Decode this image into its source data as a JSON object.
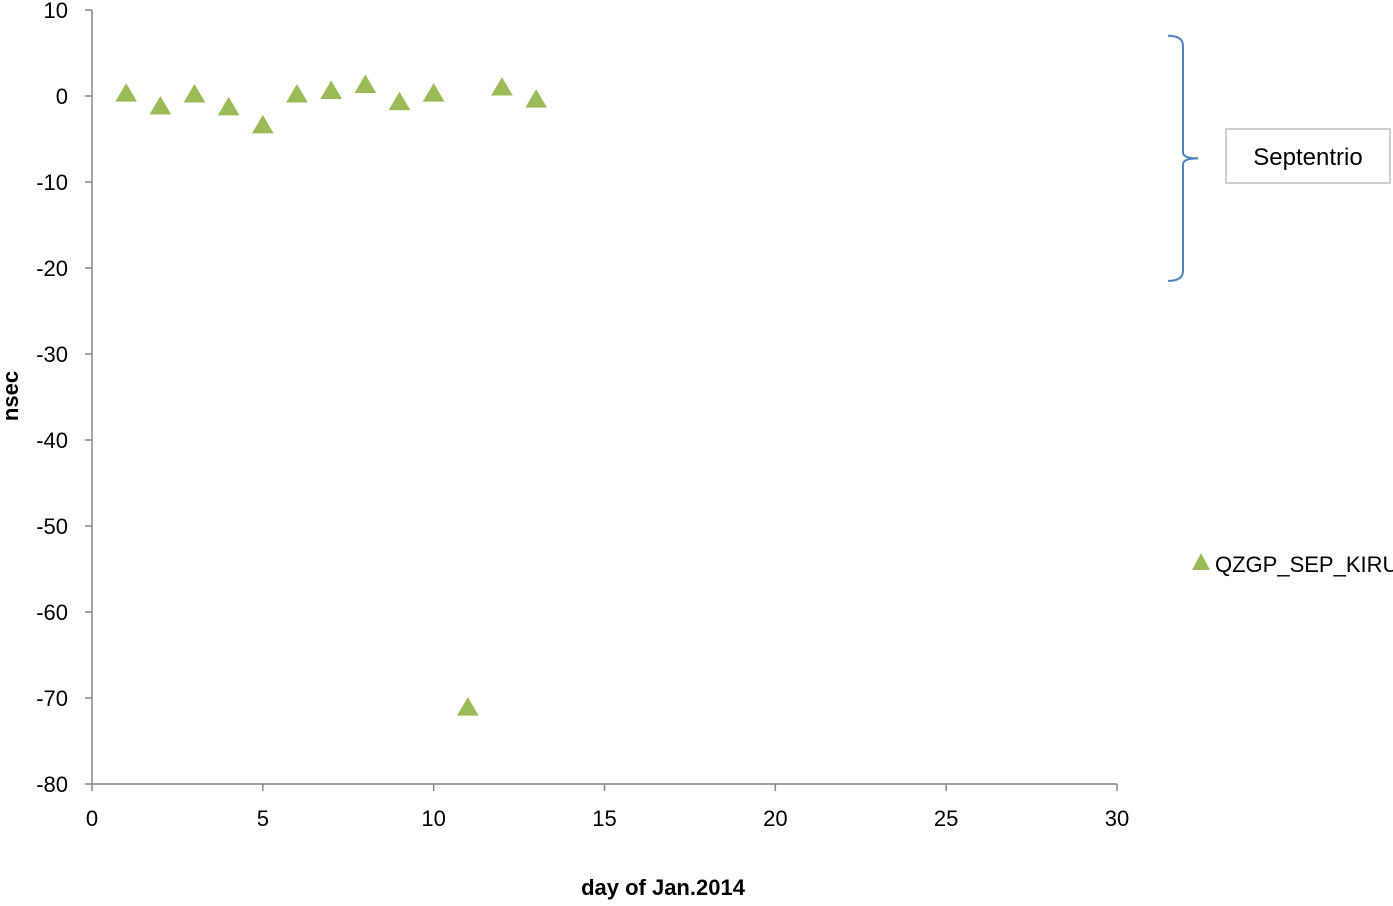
{
  "chart_data": {
    "type": "scatter",
    "xlabel": "day of Jan.2014",
    "ylabel": "nsec",
    "xlim": [
      0,
      30
    ],
    "ylim": [
      -80,
      10
    ],
    "x_ticks": [
      "0",
      "5",
      "10",
      "15",
      "20",
      "25",
      "30"
    ],
    "y_ticks": [
      "10",
      "0",
      "-10",
      "-20",
      "-30",
      "-40",
      "-50",
      "-60",
      "-70",
      "-80"
    ],
    "grid": false,
    "legend_position": "right",
    "series": [
      {
        "name": "QZGP_SEP_KIRU",
        "marker": "triangle",
        "color": "#9BBB59",
        "points": [
          {
            "x": 1,
            "y": 0.2
          },
          {
            "x": 2,
            "y": -1.3
          },
          {
            "x": 3,
            "y": 0.1
          },
          {
            "x": 4,
            "y": -1.4
          },
          {
            "x": 5,
            "y": -3.5
          },
          {
            "x": 6,
            "y": 0.1
          },
          {
            "x": 7,
            "y": 0.5
          },
          {
            "x": 8,
            "y": 1.2
          },
          {
            "x": 9,
            "y": -0.8
          },
          {
            "x": 10,
            "y": 0.2
          },
          {
            "x": 11,
            "y": -71.2
          },
          {
            "x": 12,
            "y": 0.9
          },
          {
            "x": 13,
            "y": -0.5
          }
        ]
      }
    ],
    "annotations": [
      {
        "text": "Septentrio",
        "type": "bracket-callout",
        "y_from": 7,
        "y_to": -21.5,
        "bracket_color": "#4F81BD"
      }
    ]
  }
}
